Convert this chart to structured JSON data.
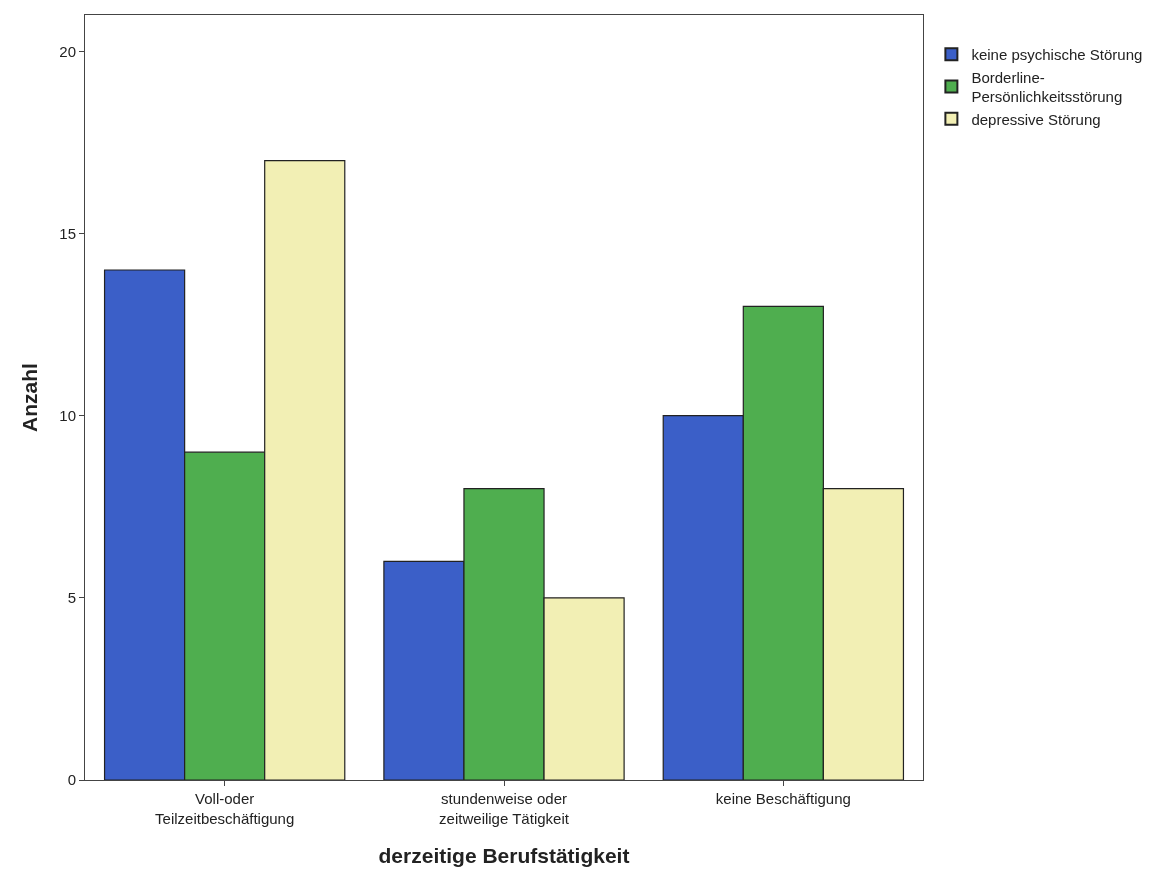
{
  "chart_data": {
    "type": "bar",
    "xlabel": "derzeitige Berufstätigkeit",
    "ylabel": "Anzahl",
    "categories": [
      "Voll-oder\nTeilzeitbeschäftigung",
      "stundenweise oder\nzeitweilige Tätigkeit",
      "keine Beschäftigung"
    ],
    "series": [
      {
        "name": "keine psychische Störung",
        "color": "#3b5fc8",
        "values": [
          14,
          6,
          10
        ]
      },
      {
        "name": "Borderline-\nPersönlichkeitsstörung",
        "color": "#4fae4f",
        "values": [
          9,
          8,
          13
        ]
      },
      {
        "name": "depressive Störung",
        "color": "#f2efb4",
        "values": [
          17,
          5,
          8
        ]
      }
    ],
    "ylim": [
      0,
      21
    ],
    "yticks": [
      0,
      5,
      10,
      15,
      20
    ],
    "legend": "top right"
  }
}
